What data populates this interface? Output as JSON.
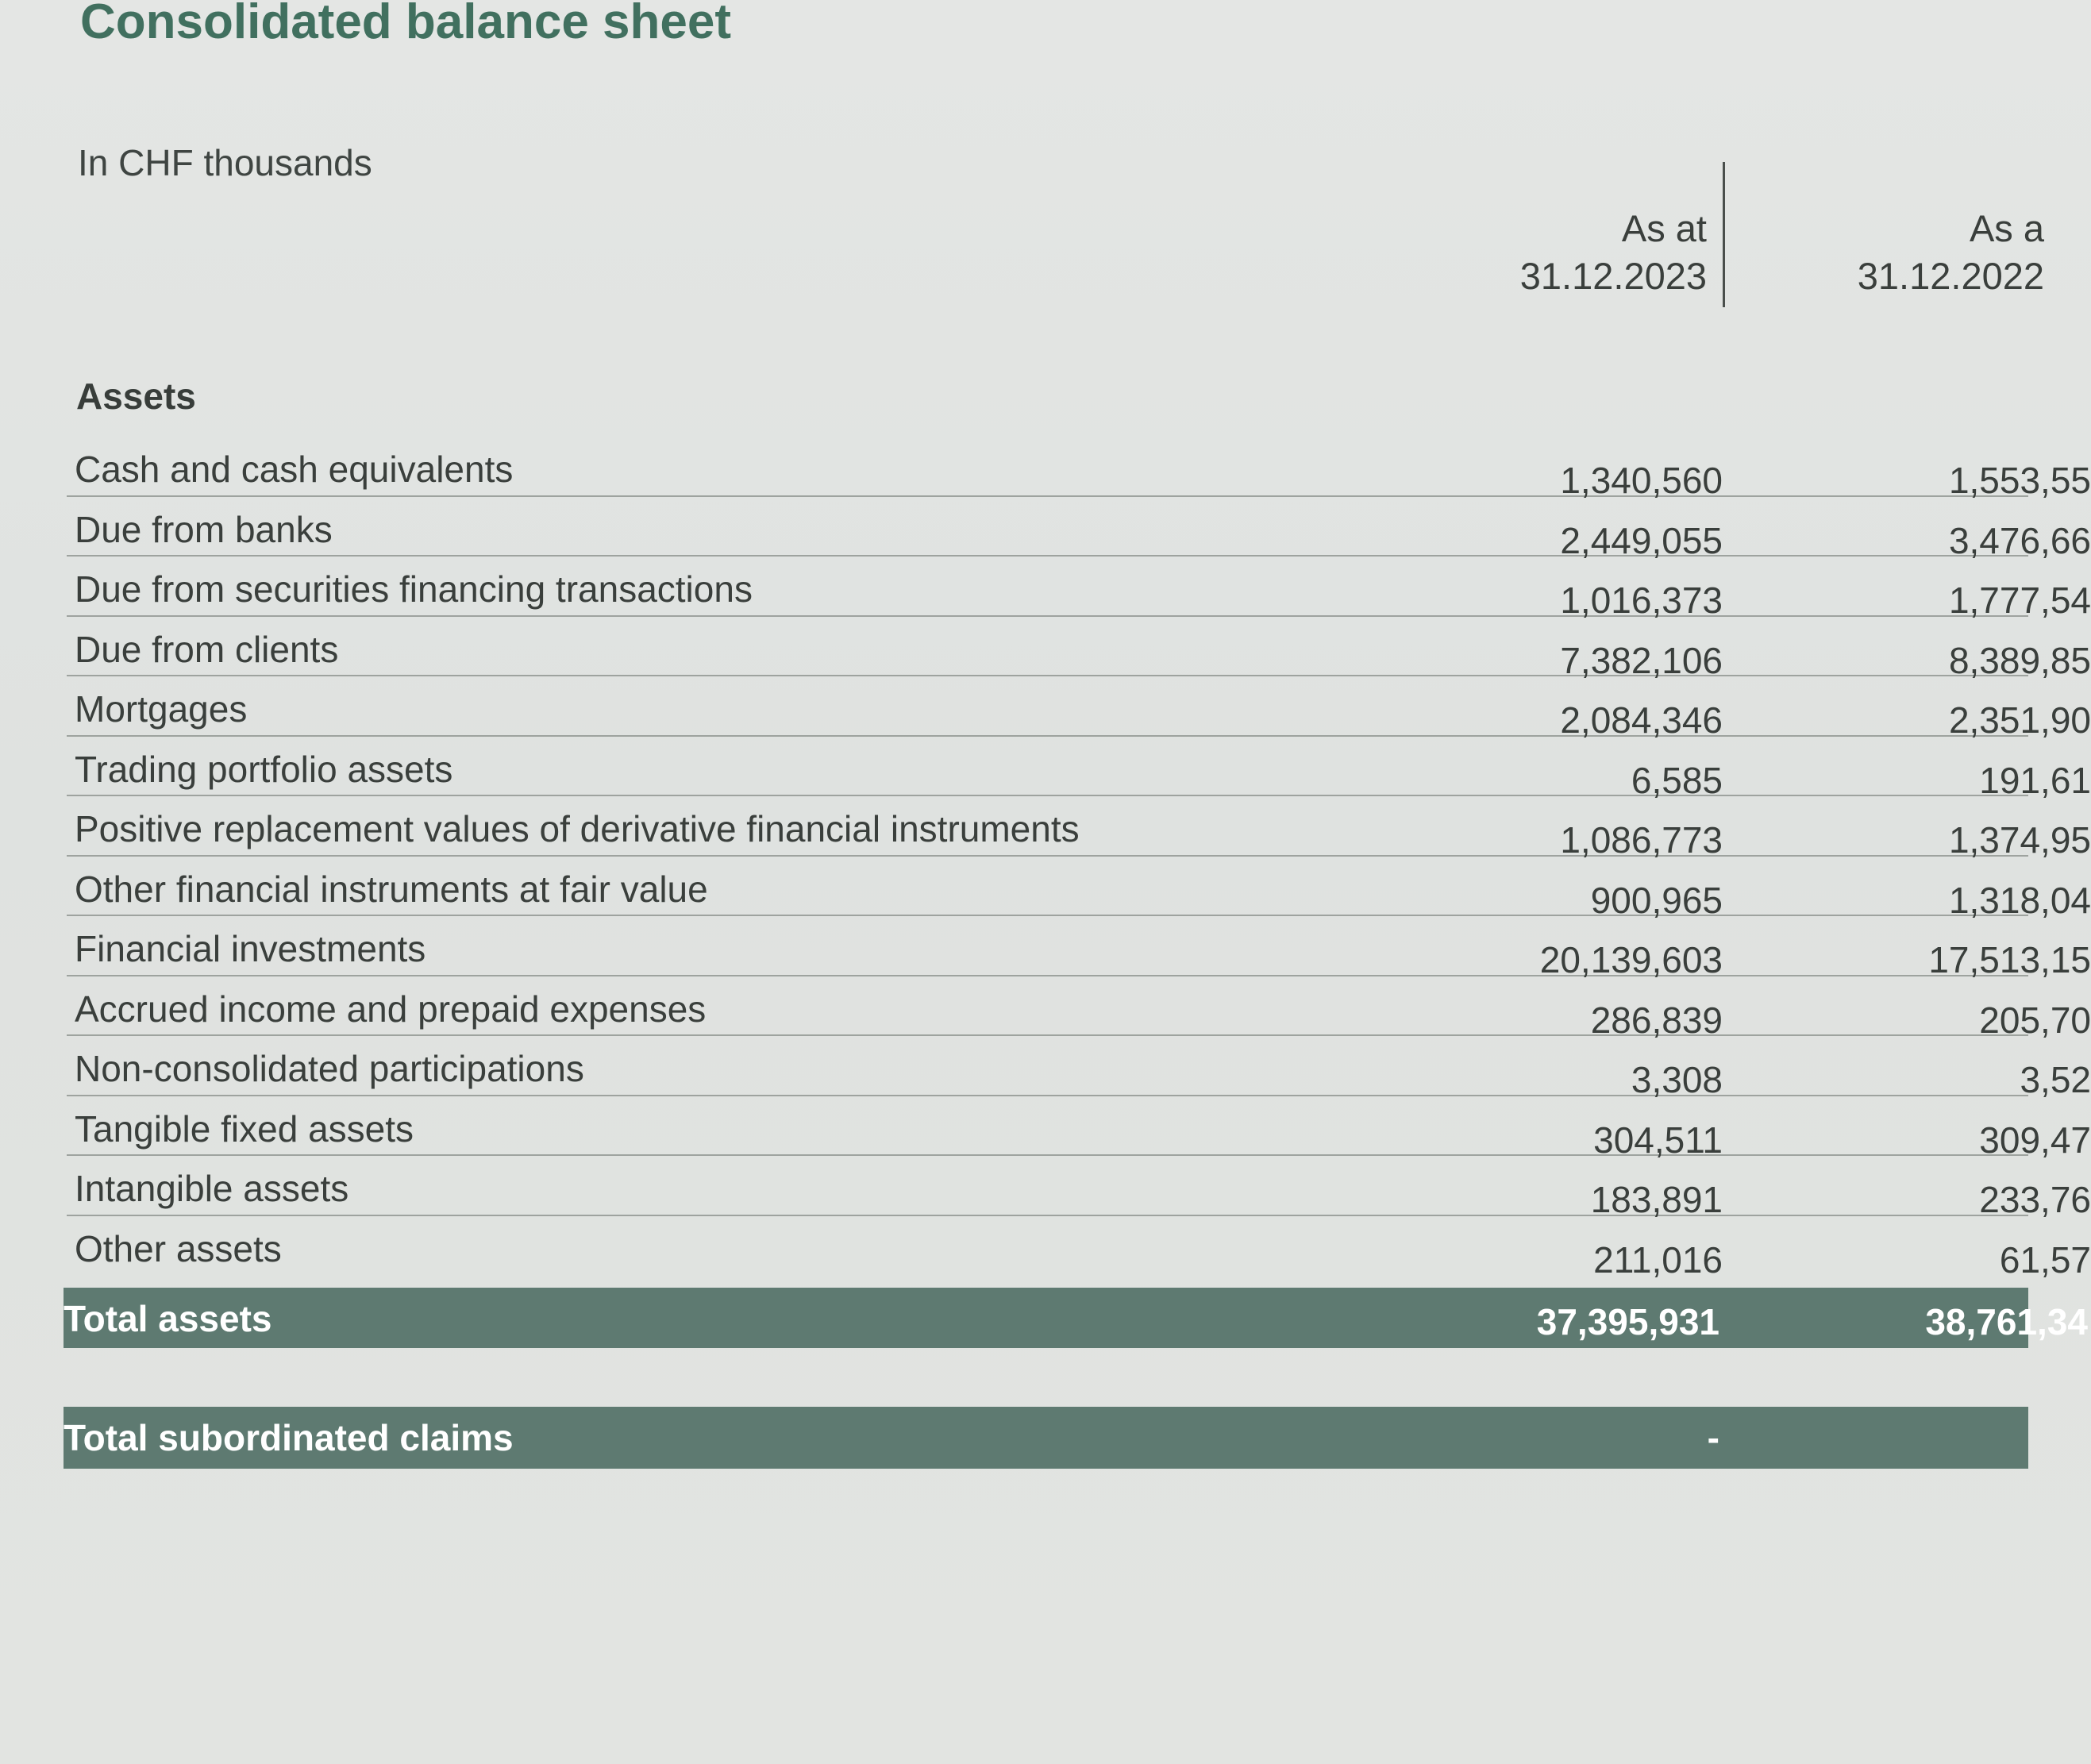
{
  "document": {
    "title": "Consolidated balance sheet",
    "unit_note": "In CHF thousands"
  },
  "columns": [
    {
      "line1": "As at",
      "line2": "31.12.2023"
    },
    {
      "line1": "As a",
      "line2": "31.12.2022"
    }
  ],
  "section": {
    "heading": "Assets"
  },
  "rows": [
    {
      "label": "Cash and cash equivalents",
      "v2023": "1,340,560",
      "v2022": "1,553,55"
    },
    {
      "label": "Due from banks",
      "v2023": "2,449,055",
      "v2022": "3,476,66"
    },
    {
      "label": "Due from securities financing transactions",
      "v2023": "1,016,373",
      "v2022": "1,777,54"
    },
    {
      "label": "Due from clients",
      "v2023": "7,382,106",
      "v2022": "8,389,85"
    },
    {
      "label": "Mortgages",
      "v2023": "2,084,346",
      "v2022": "2,351,90"
    },
    {
      "label": "Trading portfolio assets",
      "v2023": "6,585",
      "v2022": "191,61"
    },
    {
      "label": "Positive replacement values of derivative financial instruments",
      "v2023": "1,086,773",
      "v2022": "1,374,95"
    },
    {
      "label": "Other financial instruments at fair value",
      "v2023": "900,965",
      "v2022": "1,318,04"
    },
    {
      "label": "Financial investments",
      "v2023": "20,139,603",
      "v2022": "17,513,15"
    },
    {
      "label": "Accrued income and prepaid expenses",
      "v2023": "286,839",
      "v2022": "205,70"
    },
    {
      "label": "Non-consolidated participations",
      "v2023": "3,308",
      "v2022": "3,52"
    },
    {
      "label": "Tangible fixed assets",
      "v2023": "304,511",
      "v2022": "309,47"
    },
    {
      "label": "Intangible assets",
      "v2023": "183,891",
      "v2022": "233,76"
    },
    {
      "label": "Other assets",
      "v2023": "211,016",
      "v2022": "61,57"
    }
  ],
  "total_assets": {
    "label": "Total assets",
    "v2023": "37,395,931",
    "v2022": "38,761,34"
  },
  "subordinated": {
    "label": "Total subordinated claims",
    "v2023": "-"
  }
}
